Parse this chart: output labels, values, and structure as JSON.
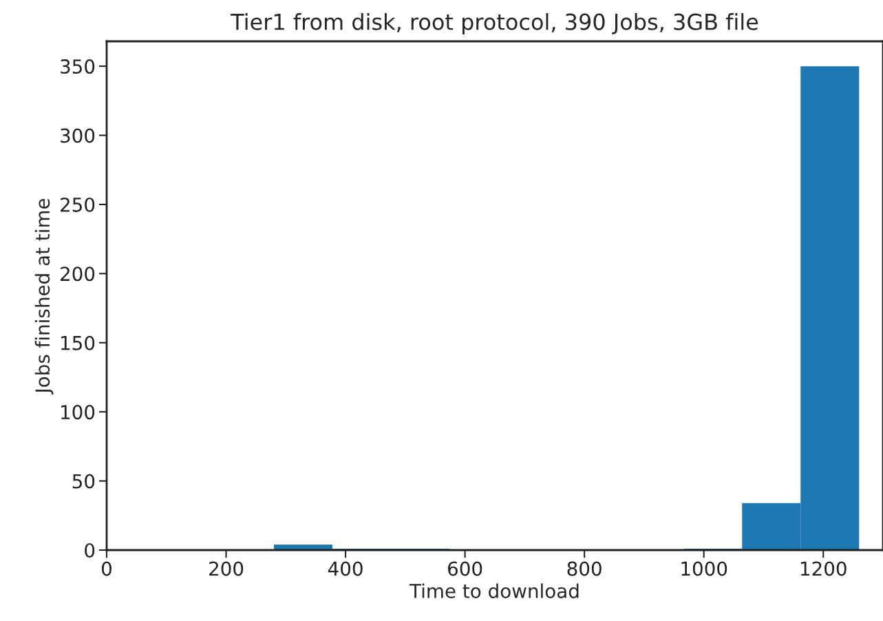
{
  "chart_data": {
    "type": "histogram",
    "title": "Tier1 from disk, root protocol, 390 Jobs, 3GB file",
    "xlabel": "Time to download",
    "ylabel": "Jobs finished at time",
    "bins": [
      280,
      378,
      476,
      574,
      672,
      770,
      868,
      966,
      1064,
      1162,
      1260
    ],
    "values": [
      4,
      1,
      1,
      0,
      0,
      0,
      0,
      1,
      34,
      350
    ],
    "color": "#1f77b4",
    "xlim": [
      0,
      1300
    ],
    "xticks": [
      0,
      200,
      400,
      600,
      800,
      1000,
      1200
    ],
    "ylim": [
      0,
      368
    ],
    "yticks": [
      0,
      50,
      100,
      150,
      200,
      250,
      300,
      350
    ],
    "grid": false
  }
}
